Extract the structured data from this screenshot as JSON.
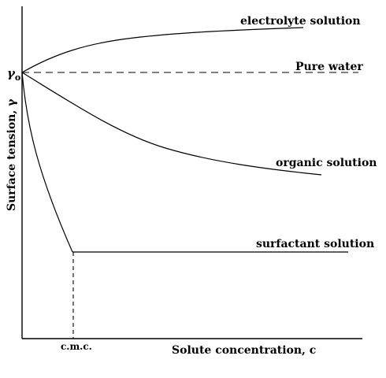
{
  "diagram": {
    "y_axis_label": "Surface tension, γ",
    "x_axis_label": "Solute concentration, c",
    "gamma0_symbol": "γ",
    "gamma0_subscript": "o",
    "cmc_label": "c.m.c.",
    "curves": {
      "electrolyte": "electrolyte solution",
      "pure_water": "Pure water",
      "organic": "organic solution",
      "surfactant": "surfactant solution"
    }
  }
}
